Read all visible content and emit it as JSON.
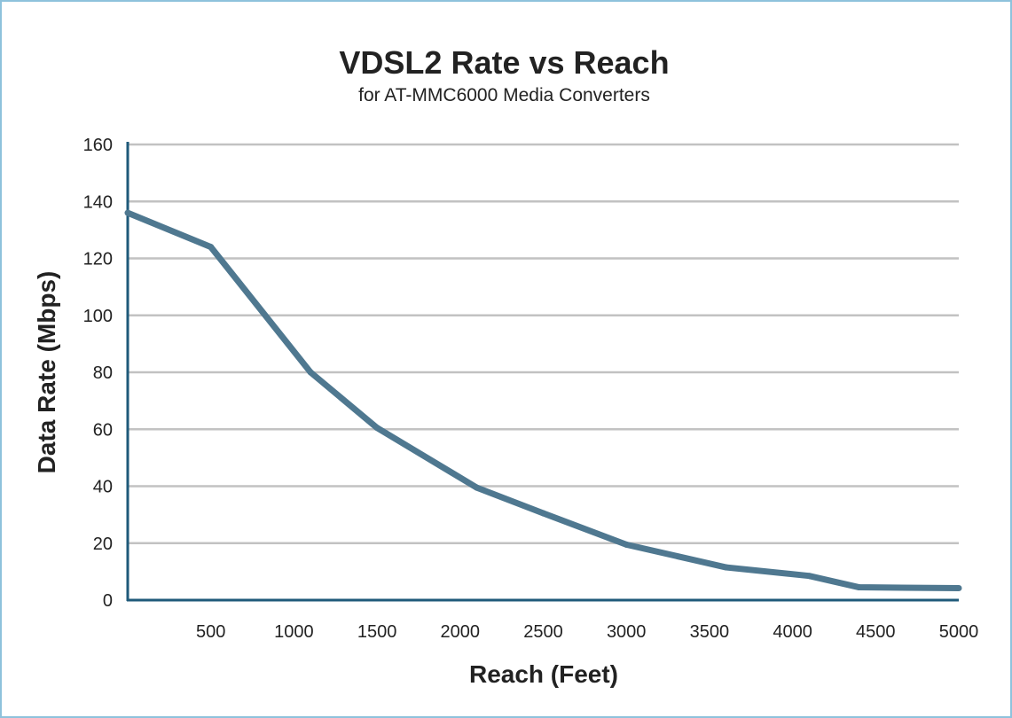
{
  "chart_data": {
    "type": "line",
    "title": "VDSL2 Rate vs Reach",
    "subtitle": "for AT-MMC6000 Media Converters",
    "xlabel": "Reach (Feet)",
    "ylabel": "Data Rate (Mbps)",
    "xlim": [
      0,
      5000
    ],
    "ylim": [
      0,
      160
    ],
    "x_ticks": [
      500,
      1000,
      1500,
      2000,
      2500,
      3000,
      3500,
      4000,
      4500,
      5000
    ],
    "y_ticks": [
      0,
      20,
      40,
      60,
      80,
      100,
      120,
      140,
      160
    ],
    "grid": true,
    "series": [
      {
        "x": [
          0,
          500,
          1100,
          1500,
          2100,
          2500,
          3000,
          3600,
          4100,
          4400,
          5000
        ],
        "y": [
          136,
          124,
          80,
          60.5,
          39.5,
          30.5,
          19.5,
          11.5,
          8.5,
          4.5,
          4.2
        ]
      }
    ],
    "colors": {
      "line": "#4f7890",
      "axis": "#1f5a7a",
      "grid": "#c2c2c2",
      "border": "#8ec2dc"
    }
  }
}
